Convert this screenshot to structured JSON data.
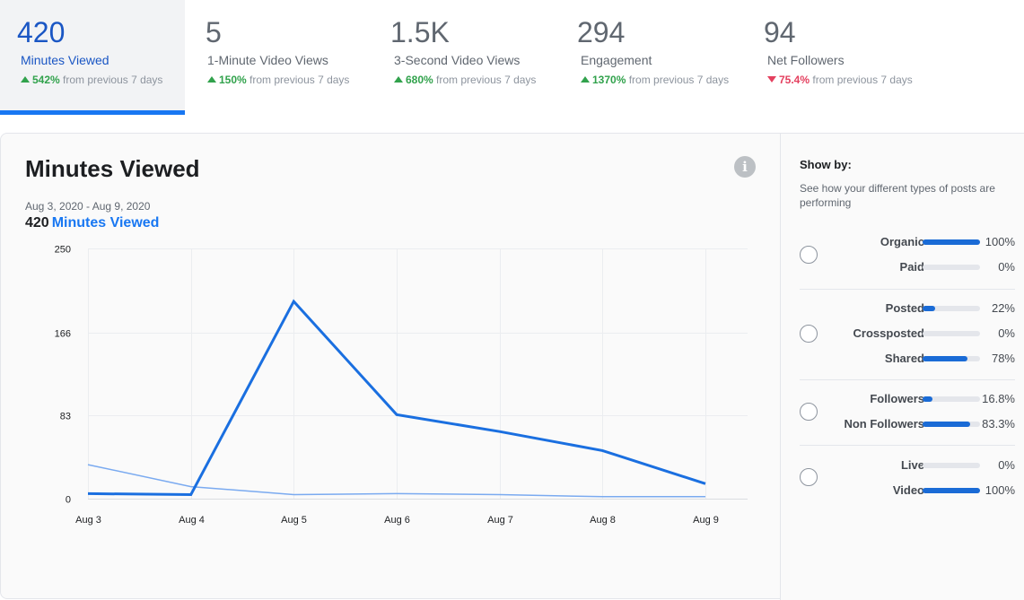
{
  "tabs": [
    {
      "value": "420",
      "label": "Minutes Viewed",
      "direction": "up",
      "pct": "542%",
      "suffix": "from previous 7 days",
      "active": true
    },
    {
      "value": "5",
      "label": "1-Minute Video Views",
      "direction": "up",
      "pct": "150%",
      "suffix": "from previous 7 days",
      "active": false
    },
    {
      "value": "1.5K",
      "label": "3-Second Video Views",
      "direction": "up",
      "pct": "680%",
      "suffix": "from previous 7 days",
      "active": false
    },
    {
      "value": "294",
      "label": "Engagement",
      "direction": "up",
      "pct": "1370%",
      "suffix": "from previous 7 days",
      "active": false
    },
    {
      "value": "94",
      "label": "Net Followers",
      "direction": "down",
      "pct": "75.4%",
      "suffix": "from previous 7 days",
      "active": false
    }
  ],
  "chart_header": {
    "title": "Minutes Viewed",
    "date_range": "Aug 3, 2020 - Aug 9, 2020",
    "total": "420",
    "total_label": "Minutes Viewed"
  },
  "chart_data": {
    "type": "line",
    "x": [
      "Aug 3",
      "Aug 4",
      "Aug 5",
      "Aug 6",
      "Aug 7",
      "Aug 8",
      "Aug 9"
    ],
    "y_ticks": [
      "0",
      "83",
      "166",
      "250"
    ],
    "ylim": [
      0,
      250
    ],
    "grid": true,
    "series": [
      {
        "values": [
          5,
          4,
          197,
          84,
          67,
          48,
          15
        ],
        "color": "#1a6fe0",
        "width": 3
      },
      {
        "values": [
          34,
          12,
          4,
          5,
          4,
          2,
          2
        ],
        "color": "#7aaaf0",
        "width": 1.5
      }
    ]
  },
  "show_by": {
    "title": "Show by:",
    "description": "See how your different types of posts are performing",
    "groups": [
      {
        "rows": [
          {
            "name": "Organic",
            "value": "100%",
            "fraction": 1.0
          },
          {
            "name": "Paid",
            "value": "0%",
            "fraction": 0.0
          }
        ]
      },
      {
        "rows": [
          {
            "name": "Posted",
            "value": "22%",
            "fraction": 0.22
          },
          {
            "name": "Crossposted",
            "value": "0%",
            "fraction": 0.0
          },
          {
            "name": "Shared",
            "value": "78%",
            "fraction": 0.78
          }
        ]
      },
      {
        "rows": [
          {
            "name": "Followers",
            "value": "16.8%",
            "fraction": 0.168
          },
          {
            "name": "Non Followers",
            "value": "83.3%",
            "fraction": 0.833
          }
        ]
      },
      {
        "rows": [
          {
            "name": "Live",
            "value": "0%",
            "fraction": 0.0
          },
          {
            "name": "Video",
            "value": "100%",
            "fraction": 1.0
          }
        ]
      }
    ]
  }
}
